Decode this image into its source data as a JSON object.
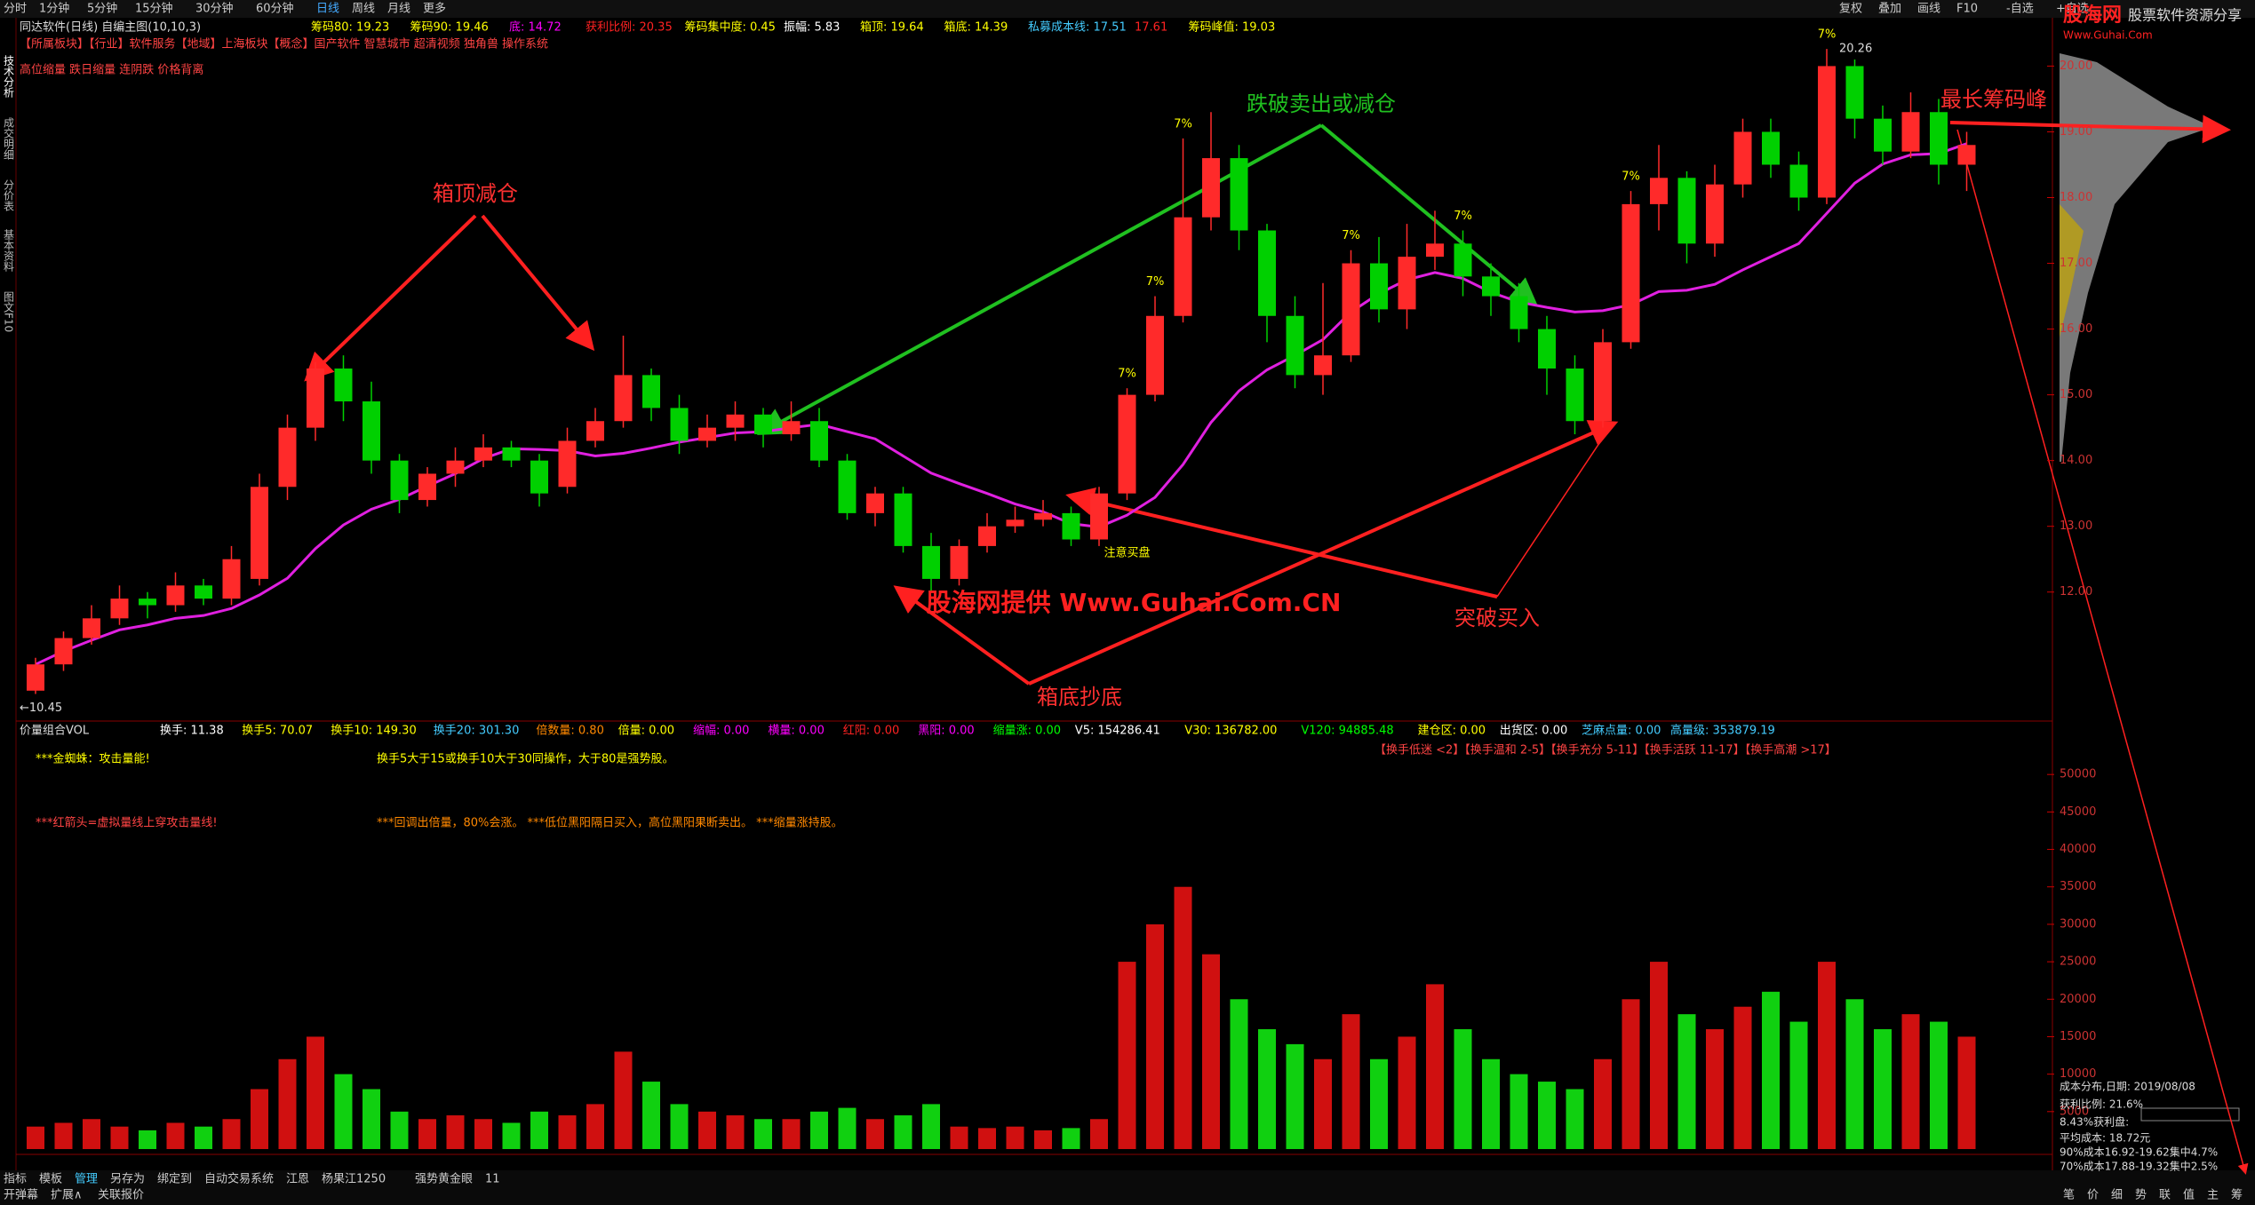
{
  "toolbar": {
    "tabs": [
      "分时",
      "1分钟",
      "5分钟",
      "15分钟",
      "30分钟",
      "60分钟",
      "日线",
      "周线",
      "月线",
      "更多"
    ],
    "right": [
      "复权",
      "叠加",
      "画线",
      "F10",
      "-自选",
      "+自选"
    ]
  },
  "side_tabs": [
    "技术分析",
    "成交明细",
    "分价表",
    "基本资料",
    "图文F10"
  ],
  "header": {
    "title": "同达软件(日线) 自编主图(10,10,3)",
    "indicators": [
      "筹码80: 19.23",
      "筹码90: 19.46",
      "底: 14.72",
      "获利比例: 20.35",
      "筹码集中度: 0.45",
      "振幅: 5.83",
      "箱顶: 19.64",
      "箱底: 14.39",
      "私募成本线: 17.51",
      "17.61",
      "筹码峰值: 19.03"
    ],
    "concepts": "【所属板块】【行业】软件服务【地域】上海板块【概念】国产软件 智慧城市 超清视频 独角兽 操作系统",
    "note": "高位缩量 跌日缩量 连阴跌 价格背离"
  },
  "price_chart": {
    "ylim": [
      10.2,
      20.6
    ],
    "yticks": [
      {
        "value": 12,
        "label": "12.00"
      },
      {
        "value": 13,
        "label": "13.00"
      },
      {
        "value": 14,
        "label": "14.00"
      },
      {
        "value": 15,
        "label": "15.00"
      },
      {
        "value": 16,
        "label": "16.00"
      },
      {
        "value": 17,
        "label": "17.00"
      },
      {
        "value": 18,
        "label": "18.00"
      },
      {
        "value": 19,
        "label": "19.00"
      },
      {
        "value": 20,
        "label": "20.00"
      }
    ],
    "candles": {
      "open": [
        10.5,
        10.9,
        11.3,
        11.6,
        11.9,
        11.8,
        12.1,
        11.9,
        12.2,
        13.6,
        14.5,
        15.4,
        14.9,
        14.0,
        13.4,
        13.8,
        14.0,
        14.2,
        14.0,
        13.6,
        14.3,
        14.6,
        15.3,
        14.8,
        14.3,
        14.5,
        14.7,
        14.4,
        14.6,
        14.0,
        13.2,
        13.5,
        12.7,
        12.2,
        12.7,
        13.0,
        13.1,
        13.2,
        12.8,
        13.5,
        15.0,
        16.2,
        17.7,
        18.6,
        17.5,
        16.2,
        15.3,
        15.6,
        17.0,
        16.3,
        17.1,
        17.3,
        16.8,
        16.5,
        16.0,
        15.4,
        14.6,
        15.8,
        17.9,
        18.3,
        17.3,
        18.2,
        19.0,
        18.5,
        18.0,
        20.0,
        19.2,
        18.7,
        19.3,
        18.5
      ],
      "close": [
        10.9,
        11.3,
        11.6,
        11.9,
        11.8,
        12.1,
        11.9,
        12.5,
        13.6,
        14.5,
        15.4,
        14.9,
        14.0,
        13.4,
        13.8,
        14.0,
        14.2,
        14.0,
        13.5,
        14.3,
        14.6,
        15.3,
        14.8,
        14.3,
        14.5,
        14.7,
        14.4,
        14.6,
        14.0,
        13.2,
        13.5,
        12.7,
        12.2,
        12.7,
        13.0,
        13.1,
        13.2,
        12.8,
        13.5,
        15.0,
        16.2,
        17.7,
        18.6,
        17.5,
        16.2,
        15.3,
        15.6,
        17.0,
        16.3,
        17.1,
        17.3,
        16.8,
        16.5,
        16.0,
        15.4,
        14.6,
        15.8,
        17.9,
        18.3,
        17.3,
        18.2,
        19.0,
        18.5,
        18.0,
        20.0,
        19.2,
        18.7,
        19.3,
        18.5,
        18.8
      ],
      "high": [
        11.0,
        11.4,
        11.8,
        12.1,
        12.0,
        12.3,
        12.2,
        12.7,
        13.8,
        14.7,
        15.5,
        15.6,
        15.2,
        14.1,
        13.9,
        14.2,
        14.4,
        14.3,
        14.1,
        14.5,
        14.8,
        15.9,
        15.4,
        15.0,
        14.7,
        14.9,
        14.8,
        14.9,
        14.8,
        14.1,
        13.6,
        13.6,
        12.9,
        12.8,
        13.2,
        13.3,
        13.4,
        13.3,
        13.6,
        15.1,
        16.5,
        18.9,
        19.3,
        18.8,
        17.6,
        16.5,
        16.7,
        17.2,
        17.4,
        17.6,
        17.8,
        17.5,
        17.0,
        16.7,
        16.2,
        15.6,
        16.0,
        18.1,
        18.8,
        18.4,
        18.5,
        19.2,
        19.2,
        18.7,
        20.26,
        20.1,
        19.4,
        19.6,
        19.5,
        19.0
      ],
      "low": [
        10.45,
        10.8,
        11.2,
        11.5,
        11.6,
        11.7,
        11.8,
        11.8,
        12.1,
        13.4,
        14.3,
        14.6,
        13.8,
        13.2,
        13.3,
        13.6,
        13.9,
        13.9,
        13.3,
        13.5,
        14.2,
        14.5,
        14.6,
        14.1,
        14.2,
        14.3,
        14.2,
        14.3,
        13.9,
        13.1,
        13.0,
        12.6,
        12.0,
        12.1,
        12.6,
        12.9,
        13.0,
        12.7,
        12.7,
        13.4,
        14.9,
        16.1,
        17.5,
        17.2,
        15.8,
        15.1,
        15.0,
        15.5,
        16.1,
        16.0,
        16.9,
        16.5,
        16.2,
        15.8,
        15.0,
        14.4,
        14.5,
        15.7,
        17.5,
        17.0,
        17.1,
        18.0,
        18.3,
        17.8,
        17.9,
        18.9,
        18.5,
        18.6,
        18.2,
        18.1
      ]
    },
    "low_label": "←10.45",
    "high_label": "20.26",
    "limit_labels": [
      "7%",
      "7%",
      "7%",
      "7%",
      "7%",
      "7%",
      "7%"
    ],
    "buy_note": "注意买盘",
    "annotations": [
      "箱顶减仓",
      "跌破卖出或减仓",
      "箱底抄底",
      "突破买入",
      "最长筹码峰"
    ]
  },
  "watermark": "股海网提供 Www.Guhai.Com.CN",
  "volume_chart": {
    "title": "价量组合VOL",
    "stats": [
      "换手: 11.38",
      "换手5: 70.07",
      "换手10: 149.30",
      "换手20: 301.30",
      "倍数量: 0.80",
      "倍量: 0.00",
      "缩幅: 0.00",
      "横量: 0.00",
      "红阳: 0.00",
      "黑阳: 0.00",
      "缩量涨: 0.00",
      "V5: 154286.41",
      "V30: 136782.00",
      "V120: 94885.48",
      "建仓区: 0.00",
      "出货区: 0.00",
      "芝麻点量: 0.00",
      "高量级: 353879.19"
    ],
    "notes": [
      "***金蜘蛛：攻击量能!",
      "换手5大于15或换手10大于30同操作，大于80是强势股。",
      "***红箭头=虚拟量线上穿攻击量线!",
      "***回调出倍量，80%会涨。 ***低位黑阳隔日买入，高位黑阳果断卖出。 ***缩量涨持股。"
    ],
    "legend": "【换手低迷 <2】【换手温和 2-5】【换手充分 5-11】【换手活跃 11-17】【换手高潮 >17】",
    "ylim": [
      0,
      55000
    ],
    "yticks": [
      5000,
      10000,
      15000,
      20000,
      25000,
      30000,
      35000,
      40000,
      45000,
      50000
    ],
    "values": [
      3000,
      3500,
      4000,
      3000,
      2500,
      3500,
      3000,
      4000,
      8000,
      12000,
      15000,
      10000,
      8000,
      5000,
      4000,
      4500,
      4000,
      3500,
      5000,
      4500,
      6000,
      13000,
      9000,
      6000,
      5000,
      4500,
      4000,
      4000,
      5000,
      5500,
      4000,
      4500,
      6000,
      3000,
      2800,
      3000,
      2500,
      2800,
      4000,
      25000,
      30000,
      35000,
      26000,
      20000,
      16000,
      14000,
      12000,
      18000,
      12000,
      15000,
      22000,
      16000,
      12000,
      10000,
      9000,
      8000,
      12000,
      20000,
      25000,
      18000,
      16000,
      19000,
      21000,
      17000,
      25000,
      20000,
      16000,
      18000,
      17000,
      15000
    ]
  },
  "right_panel": {
    "logo": "股海网",
    "logo_sub": "Www.Guhai.Com",
    "slogan": "股票软件资源分享",
    "lines": [
      "成本分布,日期: 2019/08/08",
      "获利比例: 21.6%",
      "8.43%获利盘:",
      "平均成本: 18.72元",
      "90%成本16.92-19.62集中4.7%",
      "70%成本17.88-19.32集中2.5%"
    ],
    "tabs": [
      "笔",
      "价",
      "细",
      "势",
      "联",
      "值",
      "主",
      "筹"
    ]
  },
  "bottom_bar": {
    "tabs": [
      "指标",
      "模板",
      "管理",
      "另存为",
      "绑定到",
      "自动交易系统",
      "江恩",
      "杨果江1250",
      "强势黄金眼",
      "11"
    ],
    "tabs2": [
      "开弹幕",
      "扩展∧",
      "关联报价"
    ]
  }
}
